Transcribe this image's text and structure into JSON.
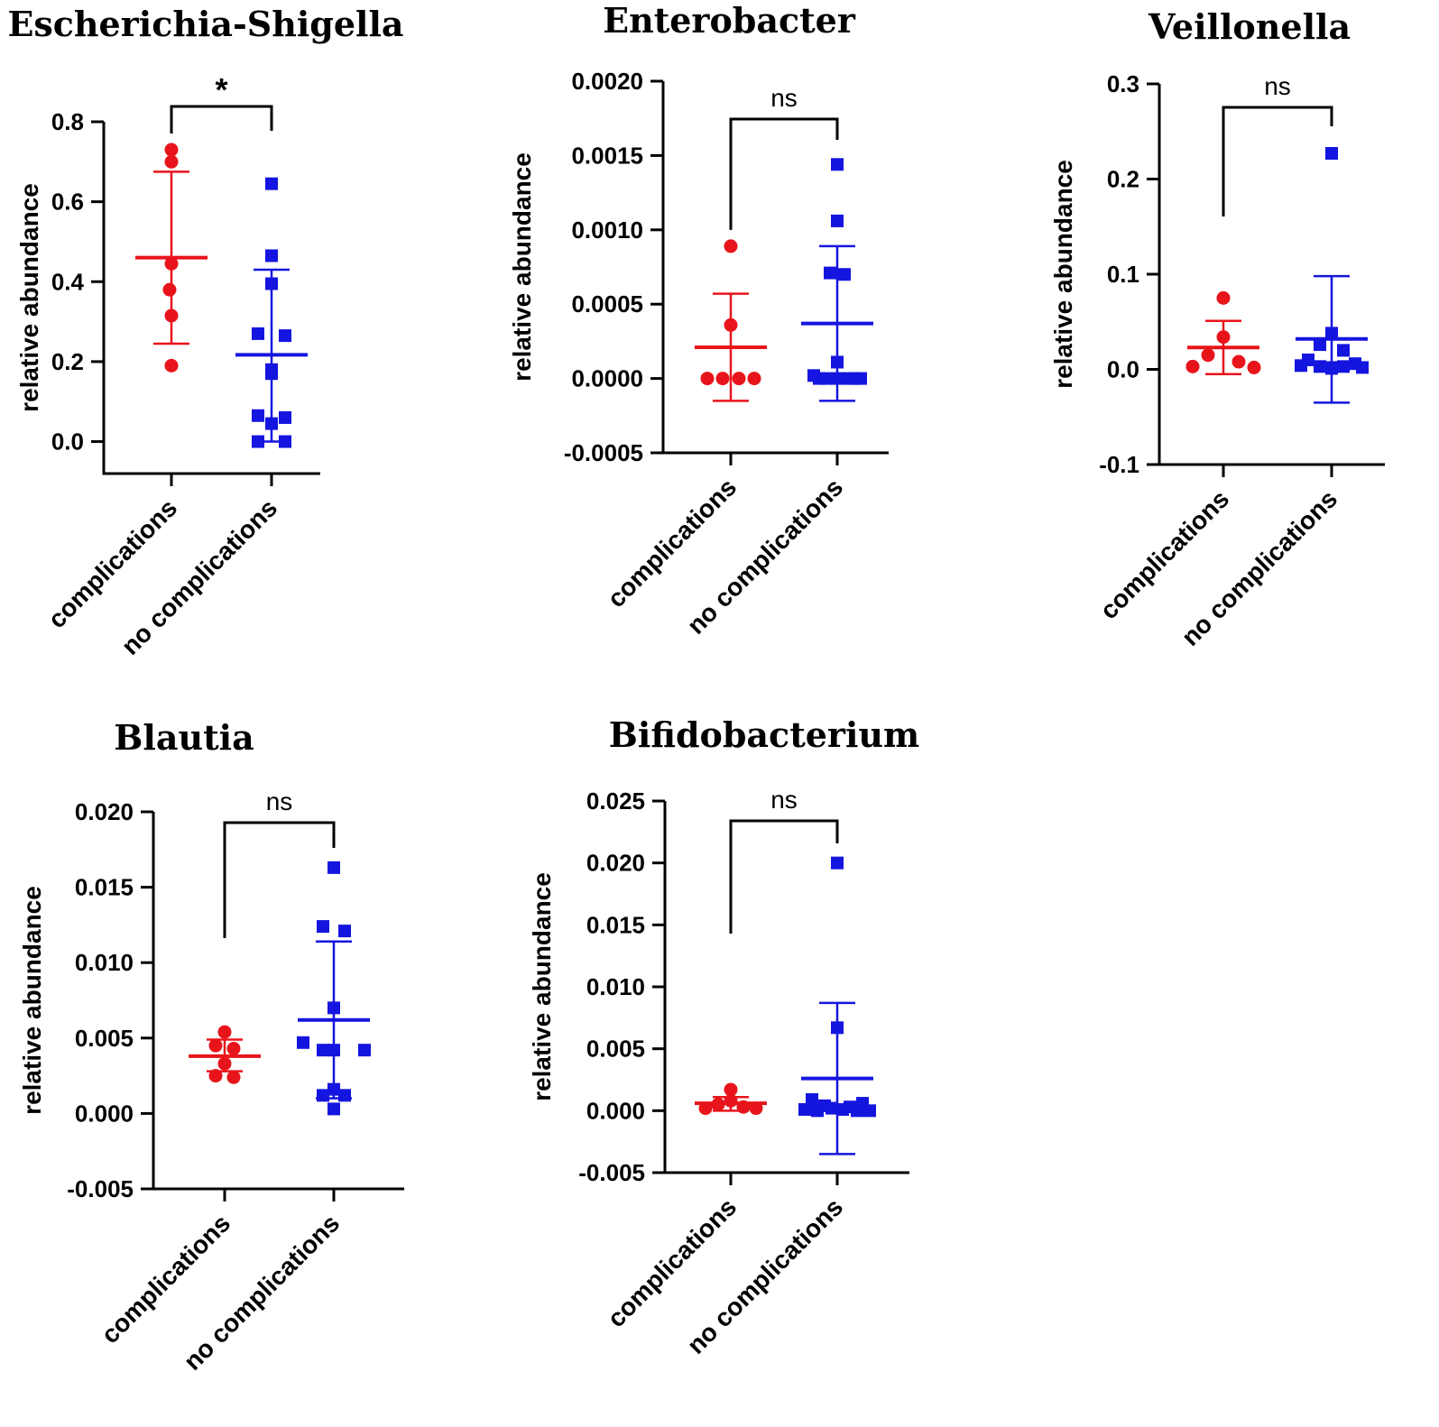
{
  "colors": {
    "complications": "#e8141b",
    "no_complications": "#1515e0",
    "axis": "#000000"
  },
  "chart_data": [
    {
      "type": "scatter",
      "title": "Escherichia-Shigella",
      "ylabel": "relative abundance",
      "categories": [
        "complications",
        "no complications"
      ],
      "ylim": [
        -0.08,
        0.8
      ],
      "yticks": [
        0.0,
        0.2,
        0.4,
        0.6,
        0.8
      ],
      "ytick_labels": [
        "0.0",
        "0.2",
        "0.4",
        "0.6",
        "0.8"
      ],
      "significance": "*",
      "series": [
        {
          "name": "complications",
          "marker": "circle",
          "mean": 0.46,
          "sd_low": 0.245,
          "sd_high": 0.675,
          "points": [
            0.73,
            0.7,
            0.445,
            0.38,
            0.315,
            0.19
          ]
        },
        {
          "name": "no complications",
          "marker": "square",
          "mean": 0.217,
          "sd_low": 0.0,
          "sd_high": 0.43,
          "points": [
            0.645,
            0.465,
            0.395,
            0.27,
            0.265,
            0.18,
            0.17,
            0.065,
            0.06,
            0.045,
            0.0,
            0.0
          ]
        }
      ]
    },
    {
      "type": "scatter",
      "title": "Enterobacter",
      "ylabel": "relative abundance",
      "categories": [
        "complications",
        "no complications"
      ],
      "ylim": [
        -0.0005,
        0.002
      ],
      "yticks": [
        -0.0005,
        0.0,
        0.0005,
        0.001,
        0.0015,
        0.002
      ],
      "ytick_labels": [
        "-0.0005",
        "0.0000",
        "0.0005",
        "0.0010",
        "0.0015",
        "0.0020"
      ],
      "significance": "ns",
      "series": [
        {
          "name": "complications",
          "marker": "circle",
          "mean": 0.00021,
          "sd_low": -0.00015,
          "sd_high": 0.00057,
          "points": [
            0.00089,
            0.00036,
            0.0,
            0.0,
            0.0,
            0.0
          ]
        },
        {
          "name": "no complications",
          "marker": "square",
          "mean": 0.00037,
          "sd_low": -0.00015,
          "sd_high": 0.00089,
          "points": [
            0.00144,
            0.00106,
            0.00071,
            0.0007,
            0.00011,
            2e-05,
            0.0,
            0.0,
            0.0,
            0.0,
            0.0,
            0.0
          ]
        }
      ]
    },
    {
      "type": "scatter",
      "title": "Veillonella",
      "ylabel": "relative abundance",
      "categories": [
        "complications",
        "no complications"
      ],
      "ylim": [
        -0.1,
        0.3
      ],
      "yticks": [
        -0.1,
        0.0,
        0.1,
        0.2,
        0.3
      ],
      "ytick_labels": [
        "-0.1",
        "0.0",
        "0.1",
        "0.2",
        "0.3"
      ],
      "significance": "ns",
      "series": [
        {
          "name": "complications",
          "marker": "circle",
          "mean": 0.023,
          "sd_low": -0.005,
          "sd_high": 0.051,
          "points": [
            0.075,
            0.034,
            0.015,
            0.008,
            0.003,
            0.002
          ]
        },
        {
          "name": "no complications",
          "marker": "square",
          "mean": 0.032,
          "sd_low": -0.035,
          "sd_high": 0.098,
          "points": [
            0.227,
            0.038,
            0.026,
            0.02,
            0.01,
            0.006,
            0.004,
            0.003,
            0.003,
            0.002,
            0.002,
            0.001
          ]
        }
      ]
    },
    {
      "type": "scatter",
      "title": "Blautia",
      "ylabel": "relative abundance",
      "categories": [
        "complications",
        "no complications"
      ],
      "ylim": [
        -0.005,
        0.02
      ],
      "yticks": [
        -0.005,
        0.0,
        0.005,
        0.01,
        0.015,
        0.02
      ],
      "ytick_labels": [
        "-0.005",
        "0.000",
        "0.005",
        "0.010",
        "0.015",
        "0.020"
      ],
      "significance": "ns",
      "series": [
        {
          "name": "complications",
          "marker": "circle",
          "mean": 0.0038,
          "sd_low": 0.0028,
          "sd_high": 0.0049,
          "points": [
            0.0054,
            0.0045,
            0.0043,
            0.0033,
            0.0025,
            0.0024
          ]
        },
        {
          "name": "no complications",
          "marker": "square",
          "mean": 0.0062,
          "sd_low": 0.001,
          "sd_high": 0.0114,
          "points": [
            0.0163,
            0.0124,
            0.0121,
            0.007,
            0.0047,
            0.0042,
            0.0042,
            0.0042,
            0.0016,
            0.0012,
            0.0003,
            0.0012
          ]
        }
      ]
    },
    {
      "type": "scatter",
      "title": "Bifidobacterium",
      "ylabel": "relative abundance",
      "categories": [
        "complications",
        "no complications"
      ],
      "ylim": [
        -0.005,
        0.025
      ],
      "yticks": [
        -0.005,
        0.0,
        0.005,
        0.01,
        0.015,
        0.02,
        0.025
      ],
      "ytick_labels": [
        "-0.005",
        "0.000",
        "0.005",
        "0.010",
        "0.015",
        "0.020",
        "0.025"
      ],
      "significance": "ns",
      "series": [
        {
          "name": "complications",
          "marker": "circle",
          "mean": 0.0006,
          "sd_low": 0.0,
          "sd_high": 0.0011,
          "points": [
            0.0017,
            0.0008,
            0.0005,
            0.0003,
            0.0002,
            0.0002
          ]
        },
        {
          "name": "no complications",
          "marker": "square",
          "mean": 0.0026,
          "sd_low": -0.0035,
          "sd_high": 0.0087,
          "points": [
            0.02,
            0.0067,
            0.0009,
            0.0006,
            0.0004,
            0.0003,
            0.0002,
            0.0001,
            0.0001,
            0.0,
            0.0,
            0.0
          ]
        }
      ]
    }
  ]
}
